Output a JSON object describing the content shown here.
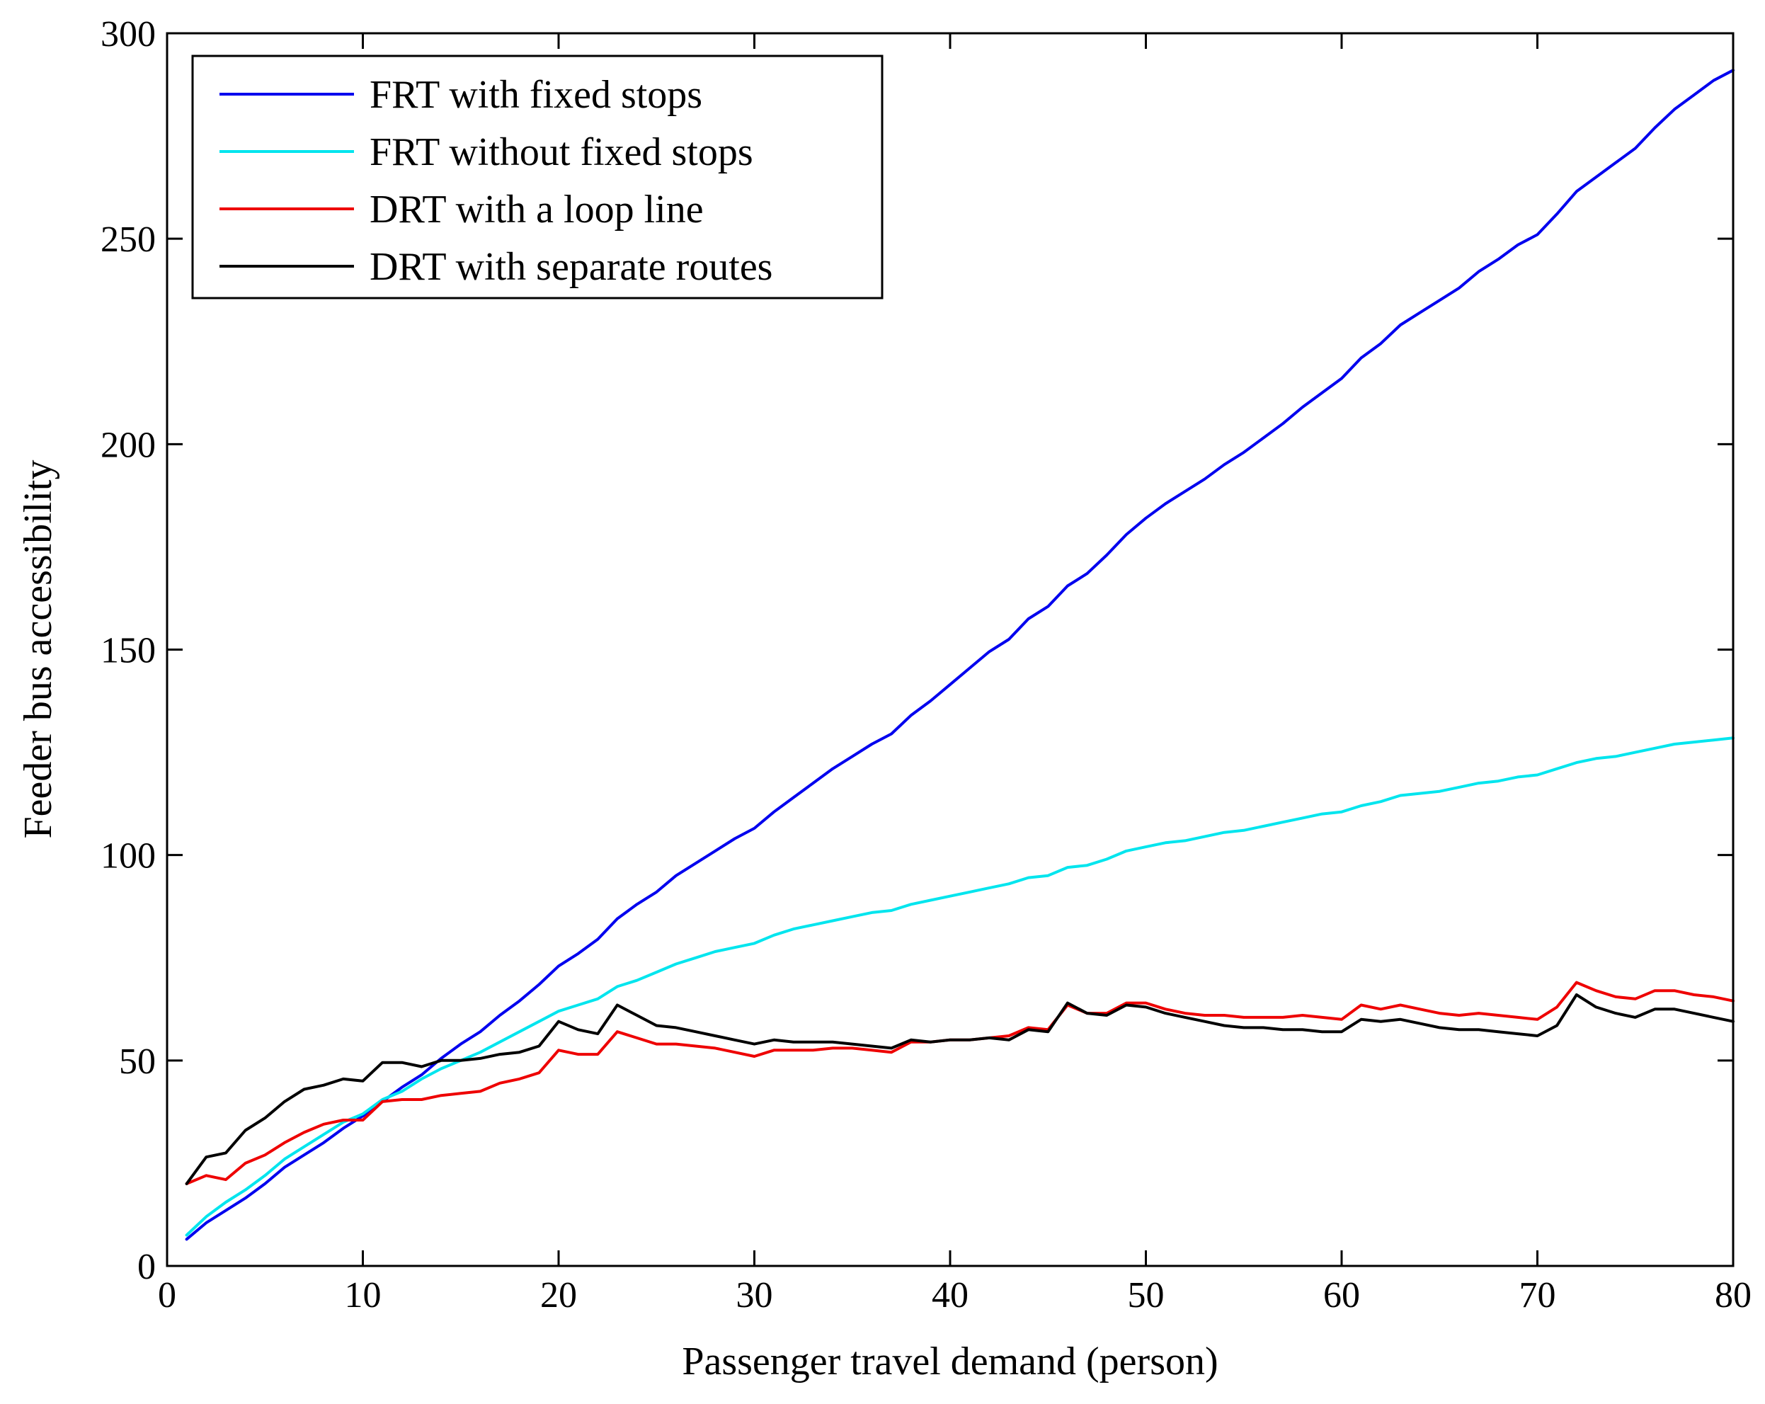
{
  "chart_data": {
    "type": "line",
    "title": "",
    "xlabel": "Passenger travel demand (person)",
    "ylabel": "Feeder bus accessibility",
    "xlim": [
      0,
      80
    ],
    "ylim": [
      0,
      300
    ],
    "xticks": [
      0,
      10,
      20,
      30,
      40,
      50,
      60,
      70,
      80
    ],
    "yticks": [
      0,
      50,
      100,
      150,
      200,
      250,
      300
    ],
    "grid": false,
    "legend_position": "top-left",
    "x": [
      1,
      2,
      3,
      4,
      5,
      6,
      7,
      8,
      9,
      10,
      11,
      12,
      13,
      14,
      15,
      16,
      17,
      18,
      19,
      20,
      21,
      22,
      23,
      24,
      25,
      26,
      27,
      28,
      29,
      30,
      31,
      32,
      33,
      34,
      35,
      36,
      37,
      38,
      39,
      40,
      41,
      42,
      43,
      44,
      45,
      46,
      47,
      48,
      49,
      50,
      51,
      52,
      53,
      54,
      55,
      56,
      57,
      58,
      59,
      60,
      61,
      62,
      63,
      64,
      65,
      66,
      67,
      68,
      69,
      70,
      71,
      72,
      73,
      74,
      75,
      76,
      77,
      78,
      79,
      80
    ],
    "series": [
      {
        "name": "FRT with fixed stops",
        "color": "#0000ee",
        "values": [
          6.5,
          10.5,
          13.5,
          16.5,
          20.0,
          24.0,
          27.0,
          30.0,
          33.5,
          36.5,
          40.0,
          43.5,
          46.5,
          50.5,
          54.0,
          57.0,
          61.0,
          64.5,
          68.5,
          73.0,
          76.0,
          79.5,
          84.5,
          88.0,
          91.0,
          95.0,
          98.0,
          101.0,
          104.0,
          106.5,
          110.5,
          114.0,
          117.5,
          121.0,
          124.0,
          127.0,
          129.5,
          134.0,
          137.5,
          141.5,
          145.5,
          149.5,
          152.5,
          157.5,
          160.5,
          165.5,
          168.5,
          173.0,
          178.0,
          182.0,
          185.5,
          188.5,
          191.5,
          195.0,
          198.0,
          201.5,
          205.0,
          209.0,
          212.5,
          216.0,
          221.0,
          224.5,
          229.0,
          232.0,
          235.0,
          238.0,
          242.0,
          245.0,
          248.5,
          251.0,
          256.0,
          261.5,
          265.0,
          268.5,
          272.0,
          277.0,
          281.5,
          285.0,
          288.5,
          291.0
        ]
      },
      {
        "name": "FRT without fixed stops",
        "color": "#00e5ee",
        "values": [
          7.5,
          12.0,
          15.5,
          18.5,
          22.0,
          26.0,
          29.0,
          32.0,
          35.0,
          37.0,
          40.5,
          42.5,
          45.5,
          48.0,
          50.0,
          52.0,
          54.5,
          57.0,
          59.5,
          62.0,
          63.5,
          65.0,
          68.0,
          69.5,
          71.5,
          73.5,
          75.0,
          76.5,
          77.5,
          78.5,
          80.5,
          82.0,
          83.0,
          84.0,
          85.0,
          86.0,
          86.5,
          88.0,
          89.0,
          90.0,
          91.0,
          92.0,
          93.0,
          94.5,
          95.0,
          97.0,
          97.5,
          99.0,
          101.0,
          102.0,
          103.0,
          103.5,
          104.5,
          105.5,
          106.0,
          107.0,
          108.0,
          109.0,
          110.0,
          110.5,
          112.0,
          113.0,
          114.5,
          115.0,
          115.5,
          116.5,
          117.5,
          118.0,
          119.0,
          119.5,
          121.0,
          122.5,
          123.5,
          124.0,
          125.0,
          126.0,
          127.0,
          127.5,
          128.0,
          128.5
        ]
      },
      {
        "name": "DRT with a loop line",
        "color": "#ee0000",
        "values": [
          20.0,
          22.0,
          21.0,
          25.0,
          27.0,
          30.0,
          32.5,
          34.5,
          35.5,
          35.5,
          40.0,
          40.5,
          40.5,
          41.5,
          42.0,
          42.5,
          44.5,
          45.5,
          47.0,
          52.5,
          51.5,
          51.5,
          57.0,
          55.5,
          54.0,
          54.0,
          53.5,
          53.0,
          52.0,
          51.0,
          52.5,
          52.5,
          52.5,
          53.0,
          53.0,
          52.5,
          52.0,
          54.5,
          54.5,
          55.0,
          55.0,
          55.5,
          56.0,
          58.0,
          57.5,
          63.5,
          61.5,
          61.5,
          64.0,
          64.0,
          62.5,
          61.5,
          61.0,
          61.0,
          60.5,
          60.5,
          60.5,
          61.0,
          60.5,
          60.0,
          63.5,
          62.5,
          63.5,
          62.5,
          61.5,
          61.0,
          61.5,
          61.0,
          60.5,
          60.0,
          63.0,
          69.0,
          67.0,
          65.5,
          65.0,
          67.0,
          67.0,
          66.0,
          65.5,
          64.5
        ]
      },
      {
        "name": "DRT with separate routes",
        "color": "#000000",
        "values": [
          20.0,
          26.5,
          27.5,
          33.0,
          36.0,
          40.0,
          43.0,
          44.0,
          45.5,
          45.0,
          49.5,
          49.5,
          48.5,
          50.0,
          50.0,
          50.5,
          51.5,
          52.0,
          53.5,
          59.5,
          57.5,
          56.5,
          63.5,
          61.0,
          58.5,
          58.0,
          57.0,
          56.0,
          55.0,
          54.0,
          55.0,
          54.5,
          54.5,
          54.5,
          54.0,
          53.5,
          53.0,
          55.0,
          54.5,
          55.0,
          55.0,
          55.5,
          55.0,
          57.5,
          57.0,
          64.0,
          61.5,
          61.0,
          63.5,
          63.0,
          61.5,
          60.5,
          59.5,
          58.5,
          58.0,
          58.0,
          57.5,
          57.5,
          57.0,
          57.0,
          60.0,
          59.5,
          60.0,
          59.0,
          58.0,
          57.5,
          57.5,
          57.0,
          56.5,
          56.0,
          58.5,
          66.0,
          63.0,
          61.5,
          60.5,
          62.5,
          62.5,
          61.5,
          60.5,
          59.5
        ]
      }
    ]
  }
}
